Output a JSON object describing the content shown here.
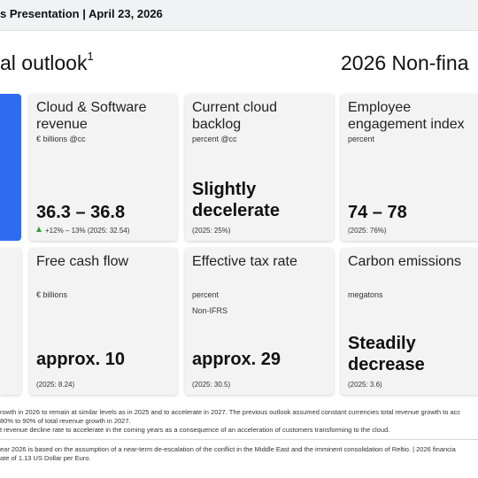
{
  "header": {
    "title": "s Presentation | April 23, 2026"
  },
  "sections": {
    "left_title": "al outlook",
    "left_sup": "1",
    "right_title": "2026 Non-fina"
  },
  "cards": {
    "cloud_software": {
      "title": "Cloud & Software revenue",
      "unit": "€ billions @cc",
      "value": "36.3 – 36.8",
      "note": "+12% – 13% (2025: 32.54)"
    },
    "current_cloud_backlog": {
      "title": "Current cloud backlog",
      "unit": "percent @cc",
      "value": "Slightly decelerate",
      "note": "(2025: 25%)"
    },
    "employee_engagement": {
      "title": "Employee engagement index",
      "unit": "percent",
      "value": "74 – 78",
      "note": "(2025: 76%)"
    },
    "free_cash_flow": {
      "title": "Free cash flow",
      "unit": "€ billions",
      "value": "approx. 10",
      "note": "(2025: 8.24)"
    },
    "effective_tax_rate": {
      "title": "Effective tax rate",
      "unit": "percent",
      "unit2": "Non-IFRS",
      "value": "approx. 29",
      "note": "(2025: 30.5)"
    },
    "carbon_emissions": {
      "title": "Carbon emissions",
      "unit": "megatons",
      "value": "Steadily decrease",
      "note": "(2025: 3.6)"
    }
  },
  "footnotes": {
    "line1": "rowth in 2026 to remain at similar levels as in 2025 and to accelerate in 2027. The previous outlook assumed constant currencies total revenue growth to acc",
    "line2": "80% to 90% of total revenue growth in 2027.",
    "line3": "t revenue decline rate to accelerate in the coming years as a consequence of an acceleration of customers transforming to the cloud.",
    "line4": "ear 2026 is based on the assumption of a near-term de-escalation of the conflict in the Middle East and the imminent consolidation of Reltio. | 2026 financia",
    "line5": "ate of 1.13 US Dollar per Euro."
  },
  "colors": {
    "accent_blue": "#2f6bf0",
    "up_green": "#2e9e3e",
    "card_bg": "#f3f3f4"
  }
}
